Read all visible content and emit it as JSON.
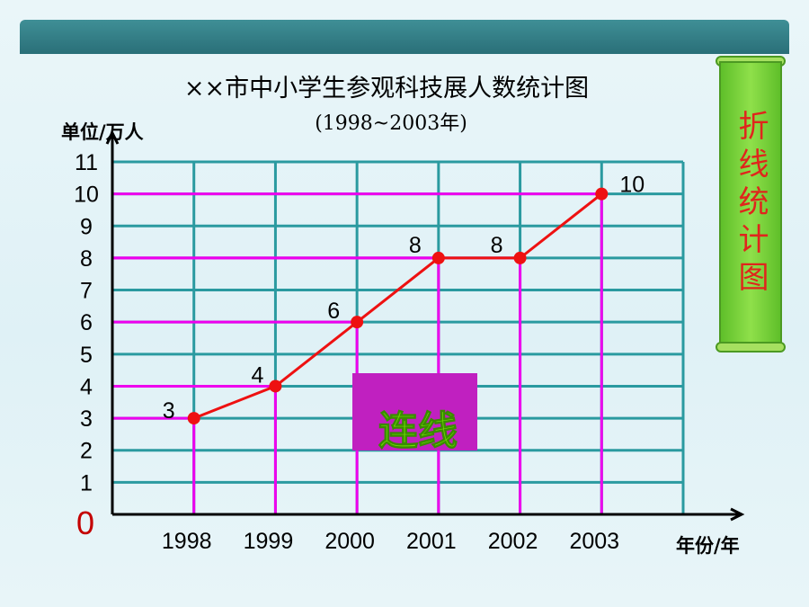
{
  "slide": {
    "side_label": "折线统计图",
    "connect_label": "连线"
  },
  "colors": {
    "grid": "#2a9aa0",
    "guide": "#ee00ee",
    "line": "#ee1111",
    "point": "#ee1111",
    "zero": "#c40000",
    "connect_box": "#c020c0",
    "connect_text": "#6fe000"
  },
  "chart_data": {
    "type": "line",
    "title": "××市中小学生参观科技展人数统计图",
    "subtitle": "(1998~2003年)",
    "ylabel": "单位/万人",
    "xlabel": "年份/年",
    "zero_label": "0",
    "categories": [
      "1998",
      "1999",
      "2000",
      "2001",
      "2002",
      "2003"
    ],
    "values": [
      3,
      4,
      6,
      8,
      8,
      10
    ],
    "data_labels": [
      "3",
      "4",
      "6",
      "8",
      "8",
      "10"
    ],
    "y_ticks": [
      1,
      2,
      3,
      4,
      5,
      6,
      7,
      8,
      9,
      10,
      11
    ],
    "y_tick_labels": [
      "1",
      "2",
      "3",
      "4",
      "5",
      "6",
      "7",
      "8",
      "9",
      "10",
      "11"
    ],
    "ylim": [
      0,
      11
    ],
    "grid": true
  }
}
